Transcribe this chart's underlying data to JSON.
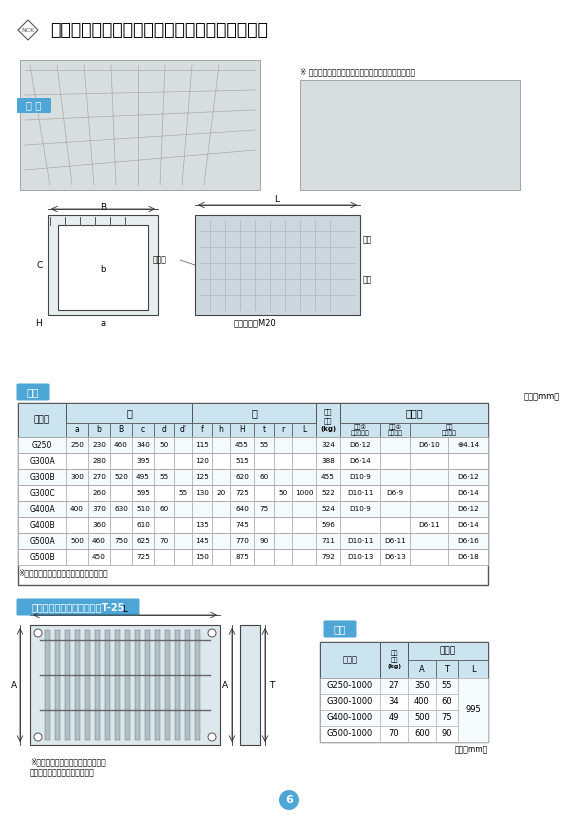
{
  "title": "道路側溝横断用（グレーチングボルト固定式）",
  "bg_color": "#ffffff",
  "header_blue": "#4da6d6",
  "header_light": "#e8f4fb",
  "table_border": "#888888",
  "section_labels": [
    "仕様",
    "グレーチング蓋（固定式）T-25",
    "仕様"
  ],
  "unit_label": "單位（mm）",
  "main_table_headers": [
    "呼び名",
    "寸",
    "法",
    "参考重量(kg)",
    "配　筋"
  ],
  "sub_headers_sun": [
    "a",
    "b",
    "B",
    "c",
    "d",
    "d'",
    "f",
    "h",
    "H",
    "t",
    "r",
    "L"
  ],
  "sub_headers_haikin": [
    "横筋①\n経径・本数",
    "横筋②\n径・本数",
    "縦筋\n径・本数"
  ],
  "rows": [
    [
      "G250",
      "250",
      "230",
      "460",
      "340",
      "50",
      "",
      "115",
      "",
      "455",
      "55",
      "",
      "",
      "324",
      "D6·12",
      "",
      "D6·10",
      "⊕4.14"
    ],
    [
      "G300A",
      "",
      "280",
      "",
      "395",
      "",
      "",
      "120",
      "",
      "515",
      "",
      "",
      "",
      "388",
      "D6·14",
      "",
      "",
      ""
    ],
    [
      "G300B",
      "300",
      "270",
      "520",
      "495",
      "55",
      "",
      "125",
      "",
      "620",
      "60",
      "",
      "",
      "455",
      "D10·9",
      "",
      "",
      "D6·12"
    ],
    [
      "G300C",
      "",
      "260",
      "",
      "595",
      "",
      "55",
      "130",
      "20",
      "725",
      "",
      "50",
      "1000",
      "522",
      "D10·11",
      "D6·9",
      "",
      "D6·14"
    ],
    [
      "G400A",
      "400",
      "370",
      "630",
      "510",
      "60",
      "",
      "",
      "",
      "640",
      "75",
      "",
      "",
      "524",
      "D10·9",
      "",
      "",
      "D6·12"
    ],
    [
      "G400B",
      "",
      "360",
      "",
      "610",
      "",
      "",
      "135",
      "",
      "745",
      "",
      "",
      "",
      "596",
      "",
      "",
      "D6·11",
      "D6·14"
    ],
    [
      "G500A",
      "500",
      "460",
      "750",
      "625",
      "70",
      "",
      "145",
      "",
      "770",
      "90",
      "",
      "",
      "711",
      "D10·11",
      "D6·11",
      "",
      "D6·16"
    ],
    [
      "G500B",
      "",
      "450",
      "",
      "725",
      "",
      "",
      "150",
      "",
      "875",
      "",
      "",
      "",
      "792",
      "D10·13",
      "D6·13",
      "",
      "D6·18"
    ]
  ],
  "grating_table": {
    "headers": [
      "呼び名",
      "参考重量(kg)",
      "寸　法"
    ],
    "sub_headers": [
      "A",
      "T",
      "L"
    ],
    "rows": [
      [
        "G250-1000",
        "27",
        "350",
        "55",
        ""
      ],
      [
        "G300-1000",
        "34",
        "400",
        "60",
        ""
      ],
      [
        "G400-1000",
        "49",
        "500",
        "75",
        "995"
      ],
      [
        "G500-1000",
        "70",
        "600",
        "90",
        ""
      ]
    ]
  },
  "note1": "※サイズによっては受注生産となります。",
  "note2": "※普通目が標準となっております。\n　細目は受注生産となります。",
  "note3": "※ 角欠け防止アングル入りもあります。（受注生産）",
  "page_num": "6",
  "honbody_label": "本 体"
}
